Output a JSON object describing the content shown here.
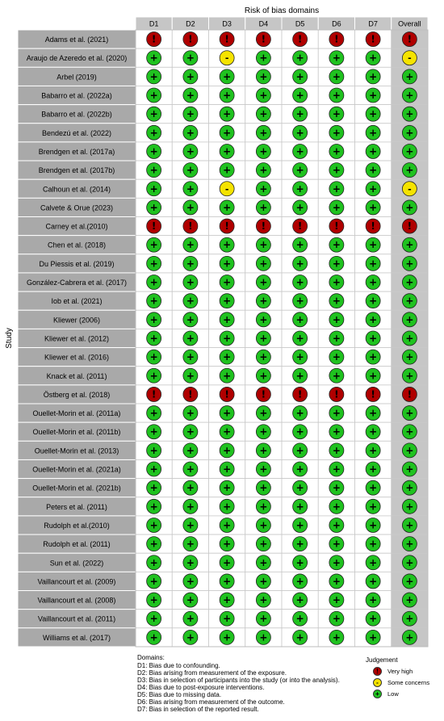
{
  "chart_data": {
    "type": "table",
    "title": "Risk of bias domains",
    "ylabel": "Study",
    "columns": [
      "D1",
      "D2",
      "D3",
      "D4",
      "D5",
      "D6",
      "D7",
      "Overall"
    ],
    "judgement_symbols": {
      "Very high": "!",
      "Some concerns": "-",
      "Low": "+"
    },
    "colors": {
      "Very high": "#b00000",
      "Some concerns": "#f5e300",
      "Low": "#1fc21f"
    },
    "rows": [
      {
        "study": "Adams et al. (2021)",
        "judgements": [
          "Very high",
          "Very high",
          "Very high",
          "Very high",
          "Very high",
          "Very high",
          "Very high",
          "Very high"
        ]
      },
      {
        "study": "Araujo de Azeredo et al. (2020)",
        "judgements": [
          "Low",
          "Low",
          "Some concerns",
          "Low",
          "Low",
          "Low",
          "Low",
          "Some concerns"
        ]
      },
      {
        "study": "Arbel (2019)",
        "judgements": [
          "Low",
          "Low",
          "Low",
          "Low",
          "Low",
          "Low",
          "Low",
          "Low"
        ]
      },
      {
        "study": "Babarro et al. (2022a)",
        "judgements": [
          "Low",
          "Low",
          "Low",
          "Low",
          "Low",
          "Low",
          "Low",
          "Low"
        ]
      },
      {
        "study": "Babarro et al. (2022b)",
        "judgements": [
          "Low",
          "Low",
          "Low",
          "Low",
          "Low",
          "Low",
          "Low",
          "Low"
        ]
      },
      {
        "study": "Bendezú et al. (2022)",
        "judgements": [
          "Low",
          "Low",
          "Low",
          "Low",
          "Low",
          "Low",
          "Low",
          "Low"
        ]
      },
      {
        "study": "Brendgen et al. (2017a)",
        "judgements": [
          "Low",
          "Low",
          "Low",
          "Low",
          "Low",
          "Low",
          "Low",
          "Low"
        ]
      },
      {
        "study": "Brendgen et al. (2017b)",
        "judgements": [
          "Low",
          "Low",
          "Low",
          "Low",
          "Low",
          "Low",
          "Low",
          "Low"
        ]
      },
      {
        "study": "Calhoun et al. (2014)",
        "judgements": [
          "Low",
          "Low",
          "Some concerns",
          "Low",
          "Low",
          "Low",
          "Low",
          "Some concerns"
        ]
      },
      {
        "study": "Calvete & Orue (2023)",
        "judgements": [
          "Low",
          "Low",
          "Low",
          "Low",
          "Low",
          "Low",
          "Low",
          "Low"
        ]
      },
      {
        "study": "Carney et al.(2010)",
        "judgements": [
          "Very high",
          "Very high",
          "Very high",
          "Very high",
          "Very high",
          "Very high",
          "Very high",
          "Very high"
        ]
      },
      {
        "study": "Chen et al. (2018)",
        "judgements": [
          "Low",
          "Low",
          "Low",
          "Low",
          "Low",
          "Low",
          "Low",
          "Low"
        ]
      },
      {
        "study": "Du Piessis et al. (2019)",
        "judgements": [
          "Low",
          "Low",
          "Low",
          "Low",
          "Low",
          "Low",
          "Low",
          "Low"
        ]
      },
      {
        "study": "González-Cabrera et al. (2017)",
        "judgements": [
          "Low",
          "Low",
          "Low",
          "Low",
          "Low",
          "Low",
          "Low",
          "Low"
        ]
      },
      {
        "study": "Iob et al. (2021)",
        "judgements": [
          "Low",
          "Low",
          "Low",
          "Low",
          "Low",
          "Low",
          "Low",
          "Low"
        ]
      },
      {
        "study": "Kliewer (2006)",
        "judgements": [
          "Low",
          "Low",
          "Low",
          "Low",
          "Low",
          "Low",
          "Low",
          "Low"
        ]
      },
      {
        "study": "Kliewer et al. (2012)",
        "judgements": [
          "Low",
          "Low",
          "Low",
          "Low",
          "Low",
          "Low",
          "Low",
          "Low"
        ]
      },
      {
        "study": "Kliewer et al. (2016)",
        "judgements": [
          "Low",
          "Low",
          "Low",
          "Low",
          "Low",
          "Low",
          "Low",
          "Low"
        ]
      },
      {
        "study": "Knack et al. (2011)",
        "judgements": [
          "Low",
          "Low",
          "Low",
          "Low",
          "Low",
          "Low",
          "Low",
          "Low"
        ]
      },
      {
        "study": "Östberg et al. (2018)",
        "judgements": [
          "Very high",
          "Very high",
          "Very high",
          "Very high",
          "Very high",
          "Very high",
          "Very high",
          "Very high"
        ]
      },
      {
        "study": "Ouellet-Morin et al. (2011a)",
        "judgements": [
          "Low",
          "Low",
          "Low",
          "Low",
          "Low",
          "Low",
          "Low",
          "Low"
        ]
      },
      {
        "study": "Ouellet-Morin et al. (2011b)",
        "judgements": [
          "Low",
          "Low",
          "Low",
          "Low",
          "Low",
          "Low",
          "Low",
          "Low"
        ]
      },
      {
        "study": "Ouellet-Morin et al. (2013)",
        "judgements": [
          "Low",
          "Low",
          "Low",
          "Low",
          "Low",
          "Low",
          "Low",
          "Low"
        ]
      },
      {
        "study": "Ouellet-Morin et al. (2021a)",
        "judgements": [
          "Low",
          "Low",
          "Low",
          "Low",
          "Low",
          "Low",
          "Low",
          "Low"
        ]
      },
      {
        "study": "Ouellet-Morin et al. (2021b)",
        "judgements": [
          "Low",
          "Low",
          "Low",
          "Low",
          "Low",
          "Low",
          "Low",
          "Low"
        ]
      },
      {
        "study": "Peters et al. (2011)",
        "judgements": [
          "Low",
          "Low",
          "Low",
          "Low",
          "Low",
          "Low",
          "Low",
          "Low"
        ]
      },
      {
        "study": "Rudolph et al.(2010)",
        "judgements": [
          "Low",
          "Low",
          "Low",
          "Low",
          "Low",
          "Low",
          "Low",
          "Low"
        ]
      },
      {
        "study": "Rudolph et al. (2011)",
        "judgements": [
          "Low",
          "Low",
          "Low",
          "Low",
          "Low",
          "Low",
          "Low",
          "Low"
        ]
      },
      {
        "study": "Sun et al. (2022)",
        "judgements": [
          "Low",
          "Low",
          "Low",
          "Low",
          "Low",
          "Low",
          "Low",
          "Low"
        ]
      },
      {
        "study": "Vaillancourt et al. (2009)",
        "judgements": [
          "Low",
          "Low",
          "Low",
          "Low",
          "Low",
          "Low",
          "Low",
          "Low"
        ]
      },
      {
        "study": "Vaillancourt et al. (2008)",
        "judgements": [
          "Low",
          "Low",
          "Low",
          "Low",
          "Low",
          "Low",
          "Low",
          "Low"
        ]
      },
      {
        "study": "Vaillancourt et al. (2011)",
        "judgements": [
          "Low",
          "Low",
          "Low",
          "Low",
          "Low",
          "Low",
          "Low",
          "Low"
        ]
      },
      {
        "study": "Williams et al. (2017)",
        "judgements": [
          "Low",
          "Low",
          "Low",
          "Low",
          "Low",
          "Low",
          "Low",
          "Low"
        ]
      }
    ],
    "domains_legend": {
      "title": "Domains:",
      "items": [
        "D1: Bias due to confounding.",
        "D2: Bias arising from measurement of the exposure.",
        "D3: Bias in selection of participants into the study (or into the analysis).",
        "D4: Bias due to post-exposure interventions.",
        "D5: Bias due to missing data.",
        "D6: Bias arising from measurement of the outcome.",
        "D7: Bias in selection of the reported result."
      ]
    },
    "judgement_legend": {
      "title": "Judgement",
      "items": [
        "Very high",
        "Some concerns",
        "Low"
      ]
    }
  }
}
